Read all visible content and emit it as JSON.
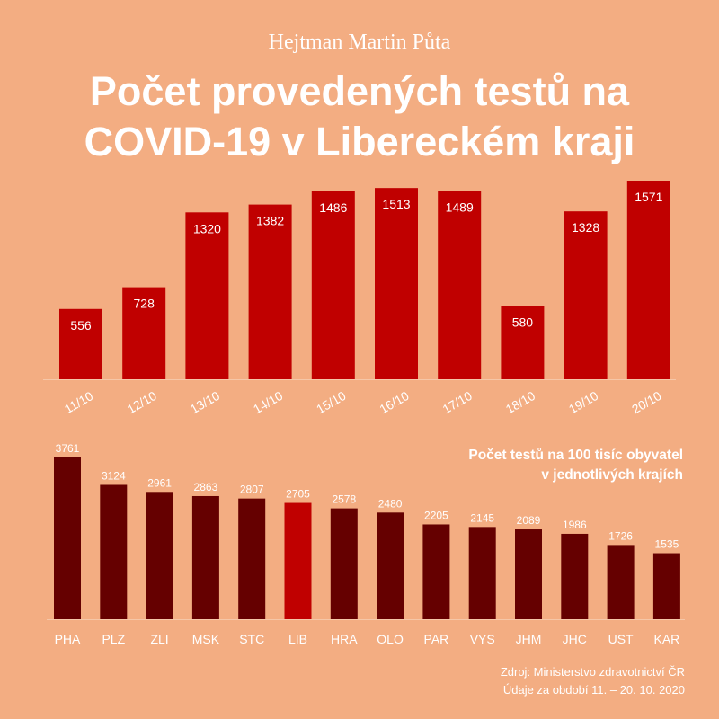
{
  "header": {
    "author": "Hejtman Martin Půta",
    "title_line1": "Počet provedených testů na",
    "title_line2": "COVID-19 v Libereckém kraji"
  },
  "colors": {
    "background": "#f3ad82",
    "bar_daily": "#c00000",
    "bar_region": "#650000",
    "bar_highlight": "#c00000",
    "text": "#ffffff"
  },
  "chart_data": [
    {
      "type": "bar",
      "title": "Počet provedených testů na COVID-19 v Libereckém kraji",
      "categories": [
        "11/10",
        "12/10",
        "13/10",
        "14/10",
        "15/10",
        "16/10",
        "17/10",
        "18/10",
        "19/10",
        "20/10"
      ],
      "values": [
        556,
        728,
        1320,
        1382,
        1486,
        1513,
        1489,
        580,
        1328,
        1571
      ],
      "ylim": [
        0,
        1600
      ],
      "grid": false,
      "data_labels": "inside-top"
    },
    {
      "type": "bar",
      "title": "Počet testů na 100 tisíc obyvatel v jednotlivých krajích",
      "categories": [
        "PHA",
        "PLZ",
        "ZLI",
        "MSK",
        "STC",
        "LIB",
        "HRA",
        "OLO",
        "PAR",
        "VYS",
        "JHM",
        "JHC",
        "UST",
        "KAR"
      ],
      "values": [
        3761,
        3124,
        2961,
        2863,
        2807,
        2705,
        2578,
        2480,
        2205,
        2145,
        2089,
        1986,
        1726,
        1535
      ],
      "highlight": "LIB",
      "ylim": [
        0,
        3800
      ],
      "grid": false,
      "data_labels": "above"
    }
  ],
  "chart2_title": {
    "line1": "Počet testů na 100 tisíc obyvatel",
    "line2": "v jednotlivých krajích"
  },
  "source": {
    "line1": "Zdroj: Ministerstvo  zdravotnictví  ČR",
    "line2": "Údaje za období 11. – 20. 10. 2020"
  }
}
